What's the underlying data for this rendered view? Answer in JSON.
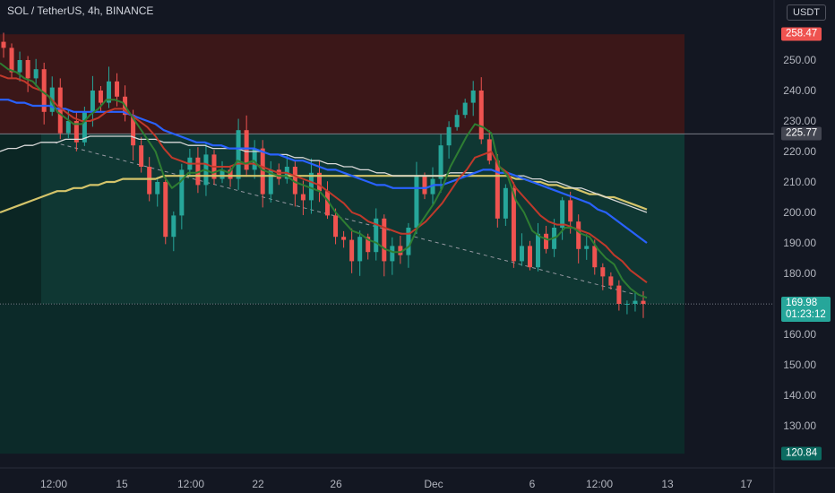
{
  "header": {
    "title": "SOL / TetherUS, 4h, BINANCE",
    "currency": "USDT"
  },
  "colors": {
    "background": "#131722",
    "bull": "#26a69a",
    "bear": "#ef5350",
    "zone_red": "#3b1718",
    "zone_green": "#0f3733",
    "zone_dark": "#0c2a29"
  },
  "chart_data": {
    "type": "candlestick",
    "y_ticks": [
      "250.00",
      "240.00",
      "230.00",
      "220.00",
      "210.00",
      "200.00",
      "190.00",
      "180.00",
      "160.00",
      "150.00",
      "140.00",
      "130.00"
    ],
    "x_ticks": [
      "12:00",
      "15",
      "12:00",
      "22",
      "26",
      "Dec",
      "6",
      "12:00",
      "13",
      "17"
    ],
    "ylim": [
      115,
      265
    ],
    "price_labels": {
      "target": "258.47",
      "entry": "225.77",
      "current": "169.98",
      "countdown": "01:23:12",
      "stop": "120.84"
    },
    "zones": {
      "profit": [
        225.77,
        258.47
      ],
      "entry_to_current": [
        169.98,
        225.77
      ],
      "loss": [
        120.84,
        169.98
      ]
    },
    "close_path": [
      254,
      246,
      250,
      244,
      247,
      233,
      241,
      226,
      230,
      223,
      233,
      240,
      236,
      243,
      238,
      232,
      222,
      215,
      206,
      210,
      192,
      199,
      214,
      218,
      209,
      219,
      211,
      214,
      211,
      227,
      214,
      221,
      206,
      214,
      211,
      215,
      206,
      204,
      213,
      207,
      199,
      192,
      191,
      184,
      192,
      187,
      198,
      184,
      189,
      186,
      195,
      212,
      206,
      211,
      222,
      228,
      232,
      236,
      240,
      224,
      217,
      198,
      208,
      184,
      189,
      182,
      193,
      188,
      195,
      204,
      197,
      188,
      189,
      182,
      179,
      176,
      170,
      170,
      171,
      169.98
    ],
    "ema_10": [
      249,
      247,
      246,
      244,
      243,
      240,
      238,
      233,
      231,
      229,
      229,
      232,
      234,
      237,
      237,
      236,
      232,
      228,
      224,
      220,
      212,
      208,
      210,
      213,
      213,
      214,
      213,
      214,
      213,
      217,
      216,
      217,
      214,
      213,
      212,
      212,
      210,
      209,
      208,
      207,
      204,
      200,
      197,
      194,
      193,
      191,
      190,
      188,
      187,
      187,
      189,
      195,
      199,
      203,
      208,
      215,
      220,
      225,
      229,
      228,
      226,
      215,
      212,
      204,
      200,
      194,
      192,
      191,
      192,
      195,
      195,
      193,
      192,
      188,
      185,
      183,
      178,
      175,
      173,
      172
    ],
    "ema_20": [
      245,
      244,
      244,
      243,
      241,
      240,
      238,
      235,
      233,
      231,
      230,
      230,
      231,
      233,
      234,
      234,
      232,
      230,
      228,
      225,
      221,
      218,
      217,
      216,
      216,
      216,
      215,
      215,
      215,
      216,
      216,
      216,
      215,
      214,
      213,
      213,
      212,
      211,
      210,
      209,
      207,
      205,
      203,
      200,
      199,
      197,
      196,
      195,
      194,
      193,
      193,
      195,
      197,
      200,
      203,
      207,
      211,
      214,
      218,
      219,
      220,
      215,
      213,
      208,
      205,
      202,
      199,
      197,
      196,
      196,
      195,
      194,
      193,
      191,
      189,
      186,
      184,
      181,
      179,
      177
    ],
    "ema_50": [
      237,
      237,
      236,
      236,
      235,
      235,
      235,
      234,
      234,
      233,
      233,
      233,
      233,
      233,
      233,
      233,
      232,
      231,
      230,
      229,
      227,
      226,
      225,
      224,
      223,
      223,
      222,
      222,
      221,
      221,
      221,
      221,
      220,
      219,
      219,
      218,
      217,
      217,
      216,
      215,
      214,
      214,
      213,
      212,
      211,
      210,
      209,
      209,
      208,
      208,
      208,
      208,
      208,
      209,
      209,
      210,
      211,
      212,
      213,
      214,
      214,
      213,
      213,
      212,
      211,
      210,
      209,
      208,
      207,
      206,
      205,
      204,
      203,
      201,
      200,
      198,
      196,
      194,
      192,
      190
    ],
    "ema_100": [
      220,
      221,
      221,
      222,
      222,
      223,
      223,
      223,
      224,
      224,
      224,
      225,
      225,
      225,
      225,
      225,
      225,
      224,
      224,
      224,
      223,
      223,
      223,
      222,
      222,
      222,
      221,
      221,
      221,
      221,
      220,
      220,
      220,
      219,
      219,
      219,
      218,
      218,
      217,
      217,
      216,
      216,
      215,
      215,
      214,
      214,
      213,
      213,
      212,
      212,
      212,
      212,
      212,
      212,
      212,
      213,
      213,
      213,
      213,
      214,
      214,
      213,
      213,
      212,
      212,
      211,
      211,
      210,
      210,
      209,
      208,
      208,
      207,
      206,
      205,
      204,
      203,
      202,
      201,
      200
    ],
    "ema_200": [
      200,
      201,
      202,
      203,
      204,
      205,
      206,
      207,
      207,
      208,
      208,
      209,
      209,
      210,
      210,
      211,
      211,
      211,
      211,
      211,
      212,
      212,
      212,
      212,
      212,
      212,
      212,
      212,
      212,
      212,
      212,
      212,
      212,
      212,
      212,
      212,
      212,
      212,
      212,
      212,
      212,
      212,
      212,
      212,
      212,
      212,
      212,
      212,
      212,
      212,
      212,
      212,
      212,
      212,
      212,
      212,
      212,
      212,
      212,
      212,
      212,
      212,
      212,
      211,
      211,
      210,
      210,
      209,
      209,
      208,
      208,
      207,
      206,
      206,
      205,
      205,
      204,
      203,
      202,
      201
    ]
  }
}
